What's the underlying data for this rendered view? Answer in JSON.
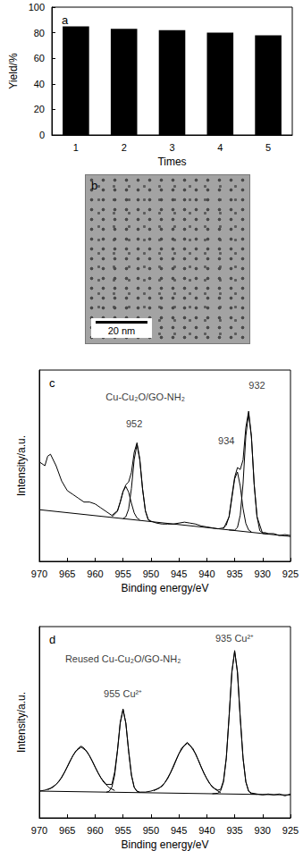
{
  "chart_data": [
    {
      "type": "bar",
      "title": "a",
      "categories": [
        "1",
        "2",
        "3",
        "4",
        "5"
      ],
      "values": [
        85,
        83,
        82,
        80,
        78
      ],
      "color": "#000000",
      "x_label": "Times",
      "y_label": "Yield/%",
      "ylim": [
        0,
        100
      ],
      "yticks": [
        0,
        20,
        40,
        60,
        80,
        100
      ],
      "grid": false
    },
    {
      "type": "line",
      "title": "c",
      "x_label": "Binding energy/eV",
      "y_label": "Intensity/a.u.",
      "xlim": [
        970,
        925
      ],
      "xticks": [
        970,
        965,
        960,
        955,
        950,
        945,
        940,
        935,
        930,
        925
      ],
      "ylim": [
        0,
        100
      ],
      "tick_labels": "x",
      "grid": false,
      "series": [
        {
          "color": "#000000",
          "line_style": "solid",
          "x": [
            925,
            926,
            927,
            928,
            929,
            929.5,
            930,
            930.5,
            931,
            931.5,
            932,
            932.5,
            933,
            933.5,
            934,
            934.5,
            935,
            935.5,
            936,
            936.5,
            937,
            938,
            939,
            940,
            941,
            942,
            943,
            944,
            945,
            946,
            947,
            948,
            949,
            950,
            950.5,
            951,
            951.5,
            952,
            952.5,
            953,
            953.5,
            954,
            954.5,
            955,
            955.5,
            956,
            957,
            958,
            959,
            960,
            961,
            962,
            963,
            964,
            965,
            966,
            967,
            968,
            968.5,
            969,
            970
          ],
          "values": [
            13.5,
            14,
            13.5,
            14.5,
            14.5,
            15,
            15,
            16,
            23.5,
            40,
            65.5,
            78.5,
            70,
            53,
            48,
            49,
            44,
            34,
            23.5,
            19,
            17.5,
            17,
            17.5,
            18,
            18.5,
            19.5,
            20,
            20.5,
            20,
            19.5,
            19.5,
            19.5,
            20,
            21,
            22,
            26.5,
            38,
            53.5,
            62,
            57,
            46.5,
            41.5,
            40,
            36.5,
            31,
            26.5,
            24,
            26,
            28,
            30,
            31,
            31,
            33,
            35,
            37,
            42,
            50,
            56,
            55,
            50,
            52
          ]
        },
        {
          "color": "#000000",
          "line_style": "solid",
          "x": [
            929,
            930,
            931,
            931.5,
            932,
            932.5,
            933,
            933.5,
            934,
            934.5,
            935,
            936
          ],
          "values": [
            14.2,
            14.6,
            23.3,
            40,
            65,
            77.3,
            65.5,
            40.6,
            24.2,
            17.7,
            16.3,
            16.4
          ]
        },
        {
          "color": "#000000",
          "line_style": "solid",
          "x": [
            932,
            932.5,
            933,
            933.5,
            934,
            934.5,
            935,
            935.5,
            936,
            937
          ],
          "values": [
            15.4,
            16.4,
            19.8,
            27.6,
            39.3,
            46.7,
            43.1,
            33.1,
            23.2,
            17.1
          ]
        },
        {
          "color": "#000000",
          "line_style": "solid",
          "x": [
            950,
            950.5,
            951,
            951.5,
            952,
            952.5,
            953,
            953.5,
            954,
            954.5,
            955
          ],
          "values": [
            20.8,
            21.7,
            26.4,
            37.5,
            53,
            61,
            53.3,
            38.1,
            27.3,
            23.3,
            22.3
          ]
        },
        {
          "color": "#000000",
          "line_style": "solid",
          "x": [
            952,
            952.5,
            953,
            953.5,
            954,
            954.5,
            955,
            955.5,
            956,
            957
          ],
          "values": [
            21.7,
            22.7,
            25.3,
            30.4,
            36.2,
            39.1,
            36.5,
            31,
            26.2,
            23.2
          ]
        },
        {
          "color": "#000000",
          "line_style": "solid",
          "x": [
            925,
            970
          ],
          "values": [
            13,
            27
          ]
        }
      ],
      "annotations": [
        {
          "text": "Cu-Cu₂O/GO-NH₂",
          "x": 951,
          "y": 86
        },
        {
          "text": "952",
          "x": 953,
          "y": 72
        },
        {
          "text": "934",
          "x": 936.5,
          "y": 63
        },
        {
          "text": "932",
          "x": 931,
          "y": 92
        }
      ]
    },
    {
      "type": "line",
      "title": "d",
      "x_label": "Binding energy/eV",
      "y_label": "Intensity/a.u.",
      "xlim": [
        970,
        925
      ],
      "xticks": [
        970,
        965,
        960,
        955,
        950,
        945,
        940,
        935,
        930,
        925
      ],
      "ylim": [
        0,
        100
      ],
      "tick_labels": "x",
      "grid": false,
      "series": [
        {
          "color": "#000000",
          "line_style": "solid",
          "x": [
            925,
            926,
            927,
            928,
            929,
            930,
            931,
            932,
            932.5,
            933,
            933.5,
            934,
            934.5,
            935,
            935.5,
            936,
            936.5,
            937,
            937.5,
            938,
            939,
            940,
            941,
            942,
            943,
            943.5,
            944,
            945,
            946,
            947,
            948,
            949,
            950,
            951,
            952,
            952.5,
            953,
            953.5,
            954,
            954.5,
            955,
            955.5,
            956,
            956.5,
            957,
            958,
            959,
            960,
            961,
            962,
            962.5,
            963,
            964,
            965,
            966,
            967,
            968,
            969,
            970
          ],
          "values": [
            12.5,
            11.5,
            12.5,
            12,
            12.5,
            12,
            12.5,
            13,
            14,
            19,
            31.5,
            52,
            76,
            87.5,
            76,
            53,
            31.5,
            19.5,
            15,
            14.5,
            16,
            20.5,
            26.5,
            33.5,
            38,
            39.5,
            38,
            33.5,
            26.5,
            20.5,
            16.5,
            15,
            14,
            13.5,
            13.5,
            14,
            16,
            22.5,
            35,
            49.5,
            57,
            50,
            35.5,
            24,
            17.5,
            17.5,
            21,
            26.5,
            32.5,
            36.5,
            37.5,
            36.5,
            32.5,
            26.5,
            21,
            17.5,
            15.5,
            14.5,
            14
          ]
        },
        {
          "color": "#000000",
          "line_style": "solid",
          "x": [
            931,
            932,
            932.5,
            933,
            933.5,
            934,
            934.5,
            935,
            935.5,
            936,
            936.5,
            937,
            937.5,
            938,
            939
          ],
          "values": [
            12.3,
            12.6,
            13.9,
            18.7,
            31,
            52.7,
            76.4,
            87,
            76.5,
            52.8,
            31.1,
            18.8,
            14.2,
            12.9,
            12.6
          ]
        },
        {
          "color": "#000000",
          "line_style": "solid",
          "x": [
            937.5,
            938.5,
            939.5,
            940.5,
            941.5,
            942.5,
            943.5,
            944.5,
            945.5,
            946.5,
            947.5,
            948.5,
            949.5
          ],
          "values": [
            13.1,
            15,
            17.9,
            23.2,
            30.2,
            36.4,
            39,
            36.5,
            30.4,
            23.6,
            18.4,
            15.6,
            14.2
          ]
        },
        {
          "color": "#000000",
          "line_style": "solid",
          "x": [
            952,
            952.5,
            953,
            953.5,
            954,
            954.5,
            955,
            955.5,
            956,
            956.5,
            957,
            957.5,
            958
          ],
          "values": [
            13.3,
            13.8,
            15.9,
            22.3,
            34.9,
            49.6,
            56.5,
            49.6,
            34.9,
            22.4,
            16,
            13.9,
            13.4
          ]
        },
        {
          "color": "#000000",
          "line_style": "solid",
          "x": [
            956.5,
            957.5,
            958.5,
            959.5,
            960.5,
            961.5,
            962.5,
            963.5,
            964.5,
            965.5,
            966.5,
            967.5,
            968.5
          ],
          "values": [
            14.3,
            15.8,
            18.7,
            23.6,
            29.7,
            34.9,
            37,
            34.9,
            29.8,
            23.8,
            18.9,
            16.1,
            14.7
          ]
        },
        {
          "color": "#000000",
          "line_style": "solid",
          "x": [
            925,
            970
          ],
          "values": [
            12,
            14
          ]
        }
      ],
      "annotations": [
        {
          "text": "Reused Cu-Cu₂O/GO-NH₂",
          "x": 955,
          "y": 83
        },
        {
          "text": "935 Cu²⁺",
          "x": 935,
          "y": 94
        },
        {
          "text": "955 Cu²⁺",
          "x": 955,
          "y": 65
        }
      ]
    }
  ],
  "image": {
    "title": "b",
    "scale_bar": "20 nm"
  }
}
